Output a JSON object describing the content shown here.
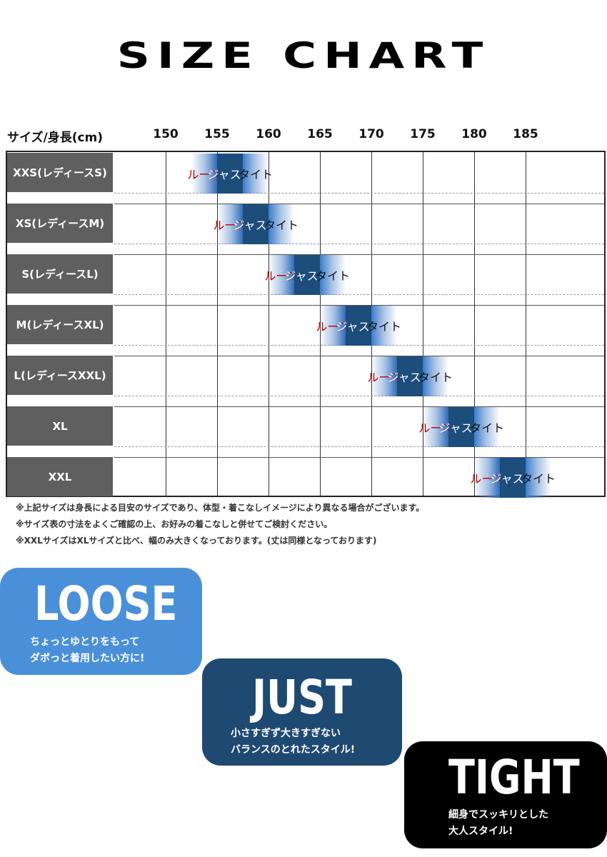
{
  "title": "SIZE CHART",
  "chart_data": {
    "type": "table",
    "header_label": "サイズ/身長(cm)",
    "x_ticks": [
      "150",
      "155",
      "160",
      "165",
      "170",
      "175",
      "180",
      "185"
    ],
    "segment_labels": {
      "loose": "ルーズ",
      "just": "ジャスト",
      "tight": "タイト"
    },
    "colors": {
      "loose_text": "#c00000",
      "just_bg": "#1d4d7a",
      "tight_text": "#111111"
    },
    "rows": [
      {
        "size": "XXS(レディースS)",
        "just_from": 155,
        "just_to": 157.5
      },
      {
        "size": "XS(レディースM)",
        "just_from": 157.5,
        "just_to": 160
      },
      {
        "size": "S(レディースL)",
        "just_from": 162.5,
        "just_to": 165
      },
      {
        "size": "M(レディースXL)",
        "just_from": 167.5,
        "just_to": 170
      },
      {
        "size": "L(レディースXXL)",
        "just_from": 172.5,
        "just_to": 175
      },
      {
        "size": "XL",
        "just_from": 177.5,
        "just_to": 180
      },
      {
        "size": "XXL",
        "just_from": 182.5,
        "just_to": 185
      }
    ]
  },
  "notes": [
    "※上記サイズは身長による目安のサイズであり、体型・着こなしイメージにより異なる場合がございます。",
    "※サイズ表の寸法をよくご確認の上、お好みの着こなしと併せてご検討ください。",
    "※XXLサイズはXLサイズと比べ、幅のみ大きくなっております。(丈は同様となっております)"
  ],
  "cards": {
    "loose": {
      "title": "LOOSE",
      "line1": "ちょっとゆとりをもって",
      "line2": "ダボっと着用したい方に!",
      "color": "#4a90d9"
    },
    "just": {
      "title": "JUST",
      "line1": "小さすぎず大きすぎない",
      "line2": "バランスのとれたスタイル!",
      "color": "#1e4a72"
    },
    "tight": {
      "title": "TIGHT",
      "line1": "細身でスッキリとした",
      "line2": "大人スタイル!",
      "color": "#000000"
    }
  }
}
